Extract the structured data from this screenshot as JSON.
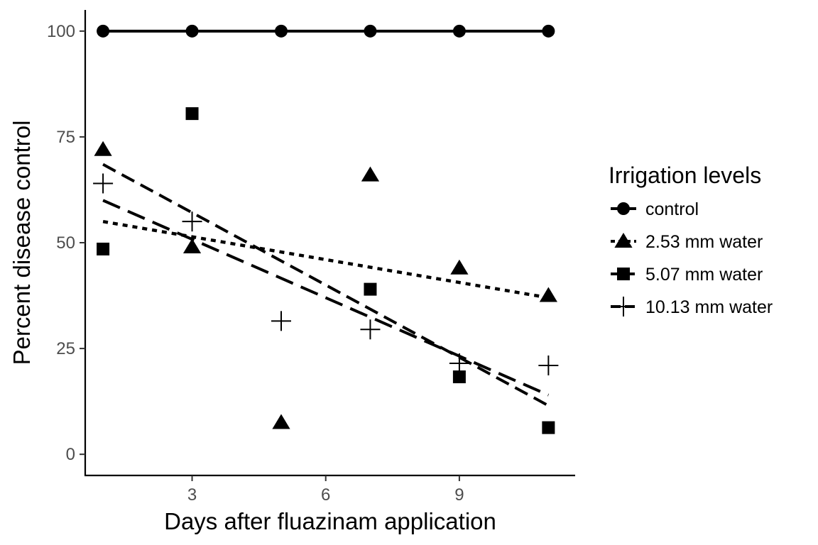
{
  "chart_data": {
    "type": "scatter",
    "xlabel": "Days after fluazinam application",
    "ylabel": "Percent disease control",
    "xlim": [
      0.6,
      11.6
    ],
    "ylim": [
      -5,
      105
    ],
    "x_ticks": [
      3,
      6,
      9
    ],
    "y_ticks": [
      0,
      25,
      50,
      75,
      100
    ],
    "grid": false,
    "legend": {
      "title": "Irrigation levels",
      "placement": "right"
    },
    "series": [
      {
        "name": "control",
        "marker": "circle",
        "line": "solid",
        "x": [
          1,
          3,
          5,
          7,
          9,
          11
        ],
        "y": [
          100,
          100,
          100,
          100,
          100,
          100
        ],
        "fit": [
          [
            1,
            100
          ],
          [
            11,
            100
          ]
        ]
      },
      {
        "name": "2.53 mm water",
        "marker": "triangle",
        "line": "dotted",
        "x": [
          1,
          3,
          5,
          7,
          9,
          11
        ],
        "y": [
          72,
          49,
          7.5,
          66,
          44,
          37.5
        ],
        "fit": [
          [
            1,
            55
          ],
          [
            11,
            37
          ]
        ]
      },
      {
        "name": "5.07 mm water",
        "marker": "square",
        "line": "dashed",
        "x": [
          1,
          3,
          5,
          7,
          9,
          11
        ],
        "y": [
          48.5,
          80.5,
          null,
          39,
          18.3,
          6.3
        ],
        "fit": [
          [
            1,
            68.5
          ],
          [
            11,
            11.5
          ]
        ]
      },
      {
        "name": "10.13 mm water",
        "marker": "plus",
        "line": "longdash",
        "x": [
          1,
          3,
          5,
          7,
          9,
          11
        ],
        "y": [
          64,
          55,
          31.5,
          29.5,
          21.5,
          21
        ],
        "fit": [
          [
            1,
            60
          ],
          [
            11,
            14
          ]
        ]
      }
    ]
  }
}
